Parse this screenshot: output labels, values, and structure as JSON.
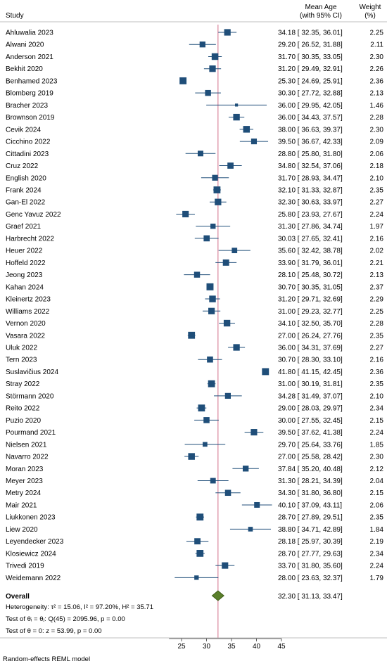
{
  "chart_data": {
    "type": "forest",
    "headers": {
      "study": "Study",
      "effect_line1": "Mean Age",
      "effect_line2": "(with 95% CI)",
      "weight_line1": "Weight",
      "weight_line2": "(%)"
    },
    "studies": [
      {
        "name": "Ahluwalia 2023",
        "mean": 34.18,
        "lo": 32.35,
        "hi": 36.01,
        "weight": 2.25,
        "label": "34.18 [ 32.35, 36.01]",
        "weight_label": "2.25"
      },
      {
        "name": "Alwani 2020",
        "mean": 29.2,
        "lo": 26.52,
        "hi": 31.88,
        "weight": 2.11,
        "label": "29.20 [ 26.52, 31.88]",
        "weight_label": "2.11"
      },
      {
        "name": "Anderson 2021",
        "mean": 31.7,
        "lo": 30.35,
        "hi": 33.05,
        "weight": 2.3,
        "label": "31.70 [ 30.35, 33.05]",
        "weight_label": "2.30"
      },
      {
        "name": "Bekhit  2020",
        "mean": 31.2,
        "lo": 29.49,
        "hi": 32.91,
        "weight": 2.26,
        "label": "31.20 [ 29.49, 32.91]",
        "weight_label": "2.26"
      },
      {
        "name": "Benhamed 2023",
        "mean": 25.3,
        "lo": 24.69,
        "hi": 25.91,
        "weight": 2.36,
        "label": "25.30 [ 24.69, 25.91]",
        "weight_label": "2.36"
      },
      {
        "name": "Blomberg 2019",
        "mean": 30.3,
        "lo": 27.72,
        "hi": 32.88,
        "weight": 2.13,
        "label": "30.30 [ 27.72, 32.88]",
        "weight_label": "2.13"
      },
      {
        "name": "Bracher  2023",
        "mean": 36.0,
        "lo": 29.95,
        "hi": 42.05,
        "weight": 1.46,
        "label": "36.00 [ 29.95, 42.05]",
        "weight_label": "1.46"
      },
      {
        "name": "Brownson 2019",
        "mean": 36.0,
        "lo": 34.43,
        "hi": 37.57,
        "weight": 2.28,
        "label": "36.00 [ 34.43, 37.57]",
        "weight_label": "2.28"
      },
      {
        "name": "Cevik 2024",
        "mean": 38.0,
        "lo": 36.63,
        "hi": 39.37,
        "weight": 2.3,
        "label": "38.00 [ 36.63, 39.37]",
        "weight_label": "2.30"
      },
      {
        "name": "Cicchino 2022",
        "mean": 39.5,
        "lo": 36.67,
        "hi": 42.33,
        "weight": 2.09,
        "label": "39.50 [ 36.67, 42.33]",
        "weight_label": "2.09"
      },
      {
        "name": "Cittadini  2023",
        "mean": 28.8,
        "lo": 25.8,
        "hi": 31.8,
        "weight": 2.06,
        "label": "28.80 [ 25.80, 31.80]",
        "weight_label": "2.06"
      },
      {
        "name": "Cruz 2022",
        "mean": 34.8,
        "lo": 32.54,
        "hi": 37.06,
        "weight": 2.18,
        "label": "34.80 [ 32.54, 37.06]",
        "weight_label": "2.18"
      },
      {
        "name": "English  2020",
        "mean": 31.7,
        "lo": 28.93,
        "hi": 34.47,
        "weight": 2.1,
        "label": "31.70 [ 28.93, 34.47]",
        "weight_label": "2.10"
      },
      {
        "name": "Frank 2024",
        "mean": 32.1,
        "lo": 31.33,
        "hi": 32.87,
        "weight": 2.35,
        "label": "32.10 [ 31.33, 32.87]",
        "weight_label": "2.35"
      },
      {
        "name": "Gan-El 2022",
        "mean": 32.3,
        "lo": 30.63,
        "hi": 33.97,
        "weight": 2.27,
        "label": "32.30 [ 30.63, 33.97]",
        "weight_label": "2.27"
      },
      {
        "name": "Genc Yavuz 2022",
        "mean": 25.8,
        "lo": 23.93,
        "hi": 27.67,
        "weight": 2.24,
        "label": "25.80 [ 23.93, 27.67]",
        "weight_label": "2.24"
      },
      {
        "name": "Graef 2021",
        "mean": 31.3,
        "lo": 27.86,
        "hi": 34.74,
        "weight": 1.97,
        "label": "31.30 [ 27.86, 34.74]",
        "weight_label": "1.97"
      },
      {
        "name": "Harbrecht 2022",
        "mean": 30.03,
        "lo": 27.65,
        "hi": 32.41,
        "weight": 2.16,
        "label": "30.03 [ 27.65, 32.41]",
        "weight_label": "2.16"
      },
      {
        "name": "Heuer 2022",
        "mean": 35.6,
        "lo": 32.42,
        "hi": 38.78,
        "weight": 2.02,
        "label": "35.60 [ 32.42, 38.78]",
        "weight_label": "2.02"
      },
      {
        "name": "Hoffeld 2022",
        "mean": 33.9,
        "lo": 31.79,
        "hi": 36.01,
        "weight": 2.21,
        "label": "33.90 [ 31.79, 36.01]",
        "weight_label": "2.21"
      },
      {
        "name": "Jeong 2023",
        "mean": 28.1,
        "lo": 25.48,
        "hi": 30.72,
        "weight": 2.13,
        "label": "28.10 [ 25.48, 30.72]",
        "weight_label": "2.13"
      },
      {
        "name": "Kahan 2024",
        "mean": 30.7,
        "lo": 30.35,
        "hi": 31.05,
        "weight": 2.37,
        "label": "30.70 [ 30.35, 31.05]",
        "weight_label": "2.37"
      },
      {
        "name": "Kleinertz 2023",
        "mean": 31.2,
        "lo": 29.71,
        "hi": 32.69,
        "weight": 2.29,
        "label": "31.20 [ 29.71, 32.69]",
        "weight_label": "2.29"
      },
      {
        "name": "Williams 2022",
        "mean": 31.0,
        "lo": 29.23,
        "hi": 32.77,
        "weight": 2.25,
        "label": "31.00 [ 29.23, 32.77]",
        "weight_label": "2.25"
      },
      {
        "name": "Vernon 2020",
        "mean": 34.1,
        "lo": 32.5,
        "hi": 35.7,
        "weight": 2.28,
        "label": "34.10 [ 32.50, 35.70]",
        "weight_label": "2.28"
      },
      {
        "name": "Vasara 2022",
        "mean": 27.0,
        "lo": 26.24,
        "hi": 27.76,
        "weight": 2.35,
        "label": "27.00 [ 26.24, 27.76]",
        "weight_label": "2.35"
      },
      {
        "name": "Uluk 2022",
        "mean": 36.0,
        "lo": 34.31,
        "hi": 37.69,
        "weight": 2.27,
        "label": "36.00 [ 34.31, 37.69]",
        "weight_label": "2.27"
      },
      {
        "name": "Tern 2023",
        "mean": 30.7,
        "lo": 28.3,
        "hi": 33.1,
        "weight": 2.16,
        "label": "30.70 [ 28.30, 33.10]",
        "weight_label": "2.16"
      },
      {
        "name": "Suslavičius 2024",
        "mean": 41.8,
        "lo": 41.15,
        "hi": 42.45,
        "weight": 2.36,
        "label": "41.80 [ 41.15, 42.45]",
        "weight_label": "2.36"
      },
      {
        "name": "Stray 2022",
        "mean": 31.0,
        "lo": 30.19,
        "hi": 31.81,
        "weight": 2.35,
        "label": "31.00 [ 30.19, 31.81]",
        "weight_label": "2.35"
      },
      {
        "name": "Störmann 2020",
        "mean": 34.28,
        "lo": 31.49,
        "hi": 37.07,
        "weight": 2.1,
        "label": "34.28 [ 31.49, 37.07]",
        "weight_label": "2.10"
      },
      {
        "name": "Reito 2022",
        "mean": 29.0,
        "lo": 28.03,
        "hi": 29.97,
        "weight": 2.34,
        "label": "29.00 [ 28.03, 29.97]",
        "weight_label": "2.34"
      },
      {
        "name": "Puzio 2020",
        "mean": 30.0,
        "lo": 27.55,
        "hi": 32.45,
        "weight": 2.15,
        "label": "30.00 [ 27.55, 32.45]",
        "weight_label": "2.15"
      },
      {
        "name": "Pourmand 2021",
        "mean": 39.5,
        "lo": 37.62,
        "hi": 41.38,
        "weight": 2.24,
        "label": "39.50 [ 37.62, 41.38]",
        "weight_label": "2.24"
      },
      {
        "name": "Nielsen 2021",
        "mean": 29.7,
        "lo": 25.64,
        "hi": 33.76,
        "weight": 1.85,
        "label": "29.70 [ 25.64, 33.76]",
        "weight_label": "1.85"
      },
      {
        "name": "Navarro 2022",
        "mean": 27.0,
        "lo": 25.58,
        "hi": 28.42,
        "weight": 2.3,
        "label": "27.00 [ 25.58, 28.42]",
        "weight_label": "2.30"
      },
      {
        "name": "Moran 2023",
        "mean": 37.84,
        "lo": 35.2,
        "hi": 40.48,
        "weight": 2.12,
        "label": "37.84 [ 35.20, 40.48]",
        "weight_label": "2.12"
      },
      {
        "name": "Meyer 2023",
        "mean": 31.3,
        "lo": 28.21,
        "hi": 34.39,
        "weight": 2.04,
        "label": "31.30 [ 28.21, 34.39]",
        "weight_label": "2.04"
      },
      {
        "name": "Metry 2024",
        "mean": 34.3,
        "lo": 31.8,
        "hi": 36.8,
        "weight": 2.15,
        "label": "34.30 [ 31.80, 36.80]",
        "weight_label": "2.15"
      },
      {
        "name": "Mair 2021",
        "mean": 40.1,
        "lo": 37.09,
        "hi": 43.11,
        "weight": 2.06,
        "label": "40.10 [ 37.09, 43.11]",
        "weight_label": "2.06"
      },
      {
        "name": "Liukkonen 2023",
        "mean": 28.7,
        "lo": 27.89,
        "hi": 29.51,
        "weight": 2.35,
        "label": "28.70 [ 27.89, 29.51]",
        "weight_label": "2.35"
      },
      {
        "name": "Liew 2020",
        "mean": 38.8,
        "lo": 34.71,
        "hi": 42.89,
        "weight": 1.84,
        "label": "38.80 [ 34.71, 42.89]",
        "weight_label": "1.84"
      },
      {
        "name": "Leyendecker 2023",
        "mean": 28.18,
        "lo": 25.97,
        "hi": 30.39,
        "weight": 2.19,
        "label": "28.18 [ 25.97, 30.39]",
        "weight_label": "2.19"
      },
      {
        "name": "Klosiewicz 2024",
        "mean": 28.7,
        "lo": 27.77,
        "hi": 29.63,
        "weight": 2.34,
        "label": "28.70 [ 27.77, 29.63]",
        "weight_label": "2.34"
      },
      {
        "name": "Trivedi 2019",
        "mean": 33.7,
        "lo": 31.8,
        "hi": 35.6,
        "weight": 2.24,
        "label": "33.70 [ 31.80, 35.60]",
        "weight_label": "2.24"
      },
      {
        "name": "Weidemann 2022",
        "mean": 28.0,
        "lo": 23.63,
        "hi": 32.37,
        "weight": 1.79,
        "label": "28.00 [ 23.63, 32.37]",
        "weight_label": "1.79"
      }
    ],
    "overall": {
      "name": "Overall",
      "mean": 32.3,
      "lo": 31.13,
      "hi": 33.47,
      "label": "32.30 [ 31.13, 33.47]"
    },
    "stats": {
      "heterogeneity": "Heterogeneity: τ² = 15.06, I² = 97.20%, H² = 35.71",
      "test_q": "Test of θᵢ = θⱼ: Q(45) = 2095.96, p = 0.00",
      "test_z": "Test of θ = 0: z = 53.99, p = 0.00"
    },
    "xaxis": {
      "ticks": [
        25,
        30,
        35,
        40,
        45
      ],
      "range": [
        22.5,
        45
      ]
    },
    "reference_value": 32.3,
    "model_note": "Random-effects REML model",
    "colors": {
      "marker": "#1f4e79",
      "diamond": "#5a7f2a",
      "ref_line": "#d9839b",
      "ci_line": "#1f4e79"
    }
  }
}
